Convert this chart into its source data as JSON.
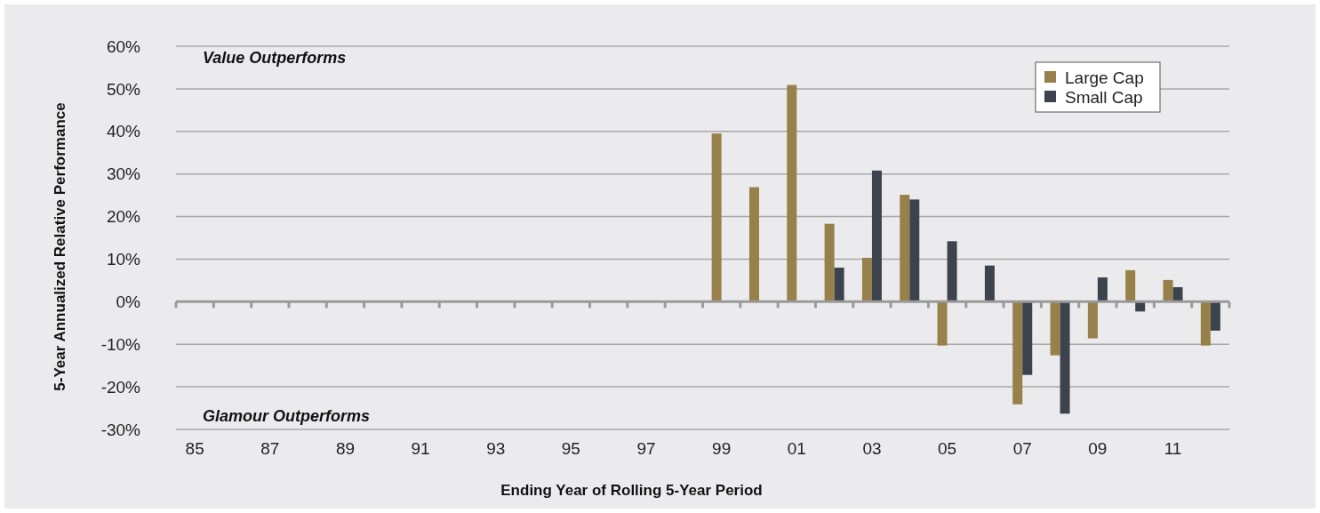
{
  "chart_data": {
    "type": "bar",
    "xlabel": "Ending Year of Rolling 5-Year Period",
    "ylabel": "5-Year Annualized Relative Performance",
    "categories": [
      "85",
      null,
      "87",
      null,
      "89",
      null,
      "91",
      null,
      "93",
      null,
      "95",
      null,
      "97",
      null,
      "99",
      null,
      "01",
      null,
      "03",
      null,
      "05",
      null,
      "07",
      null,
      "09",
      null,
      "11",
      null
    ],
    "series": [
      {
        "name": "Large Cap",
        "color": "#978049",
        "values": [
          null,
          null,
          null,
          null,
          null,
          null,
          null,
          null,
          null,
          null,
          null,
          null,
          null,
          null,
          39.5,
          26.9,
          50.9,
          18.3,
          10.3,
          25.1,
          -10.3,
          null,
          -24.1,
          -12.6,
          -8.6,
          7.4,
          5.1,
          -10.3
        ]
      },
      {
        "name": "Small Cap",
        "color": "#3d434d",
        "values": [
          null,
          null,
          null,
          null,
          null,
          null,
          null,
          null,
          null,
          null,
          null,
          null,
          null,
          null,
          null,
          null,
          null,
          8.0,
          30.8,
          24.0,
          14.2,
          8.5,
          -17.2,
          -26.3,
          5.7,
          -2.3,
          3.4,
          -6.8
        ]
      }
    ],
    "ylim": [
      -30,
      60
    ],
    "yticks": [
      {
        "value": -30,
        "label": "-30%"
      },
      {
        "value": -20,
        "label": "-20%"
      },
      {
        "value": -10,
        "label": "-10%"
      },
      {
        "value": 0,
        "label": "0%"
      },
      {
        "value": 10,
        "label": "10%"
      },
      {
        "value": 20,
        "label": "20%"
      },
      {
        "value": 30,
        "label": "30%"
      },
      {
        "value": 40,
        "label": "40%"
      },
      {
        "value": 50,
        "label": "50%"
      },
      {
        "value": 60,
        "label": "60%"
      }
    ],
    "grid": "y",
    "legend": "top right",
    "annotations": [
      "Value Outperforms",
      "Glamour Outperforms"
    ]
  }
}
